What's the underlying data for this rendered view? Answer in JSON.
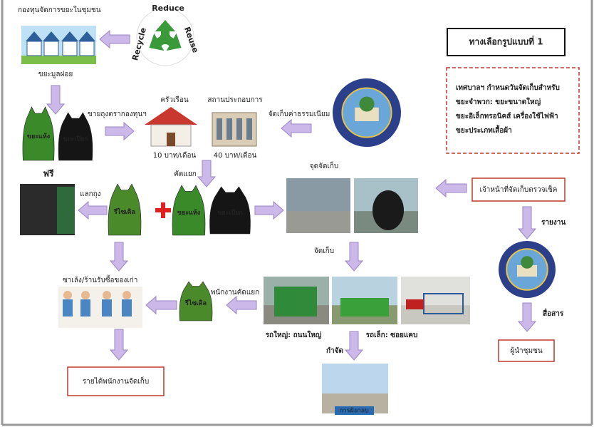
{
  "fund_title": "กองทุนจัดการขยะในชุมชน",
  "logo": {
    "reduce": "Reduce",
    "reuse": "Reuse",
    "recycle": "Recycle"
  },
  "option_title": "ทางเลือกรูปแบบที่ 1",
  "notice": [
    "เทศบาลฯ กำหนดวันจัดเก็บสำหรับ",
    "ขยะจำพวก: ขยะขนาดใหญ่",
    "ขยะอิเล็กทรอนิคส์ เครื่องใช้ไฟฟ้า",
    "ขยะประเภทเสื้อผ้า"
  ],
  "steps": {
    "waste": "ขยะมูลฝอย",
    "sell_bags": "ขายถุงตรากองทุนฯ",
    "household": "ครัวเรือน",
    "business": "สถานประกอบการ",
    "household_fee": "10 บาท/เดือน",
    "business_fee": "40 บาท/เดือน",
    "collect_fee": "จัดเก็บค่าธรรมเนียม",
    "sort": "คัดแยก",
    "free": "ฟรี",
    "exchange": "แลกถุง",
    "collection_point": "จุดจัดเก็บ",
    "inspector": "เจ้าหน้าที่จัดเก็บตรวจเช็ค",
    "report": "รายงาน",
    "communicate": "สื่อสาร",
    "leader": "ผู้นำชุมชน",
    "collect": "จัดเก็บ",
    "buyer": "ซาเล้ง/ร้านรับซื้อของเก่า",
    "staff_sort": "พนักงานคัดแยก",
    "big_truck": "รถใหญ่: ถนนใหญ่",
    "small_truck": "รถเล็ก: ซอยแคบ",
    "dispose": "กำจัด",
    "landfill": "การฝังกลบ",
    "income": "รายได้พนักงานจัดเก็บ"
  },
  "bags": {
    "dry_1": "ขยะแห้ง",
    "wet_1": "ขยะเปียก",
    "recycle_1": "รีไซเคิล",
    "dry_2": "ขยะแห้ง",
    "wet_2": "ขยะเปียก",
    "recycle_2": "รีไซเคิล"
  }
}
